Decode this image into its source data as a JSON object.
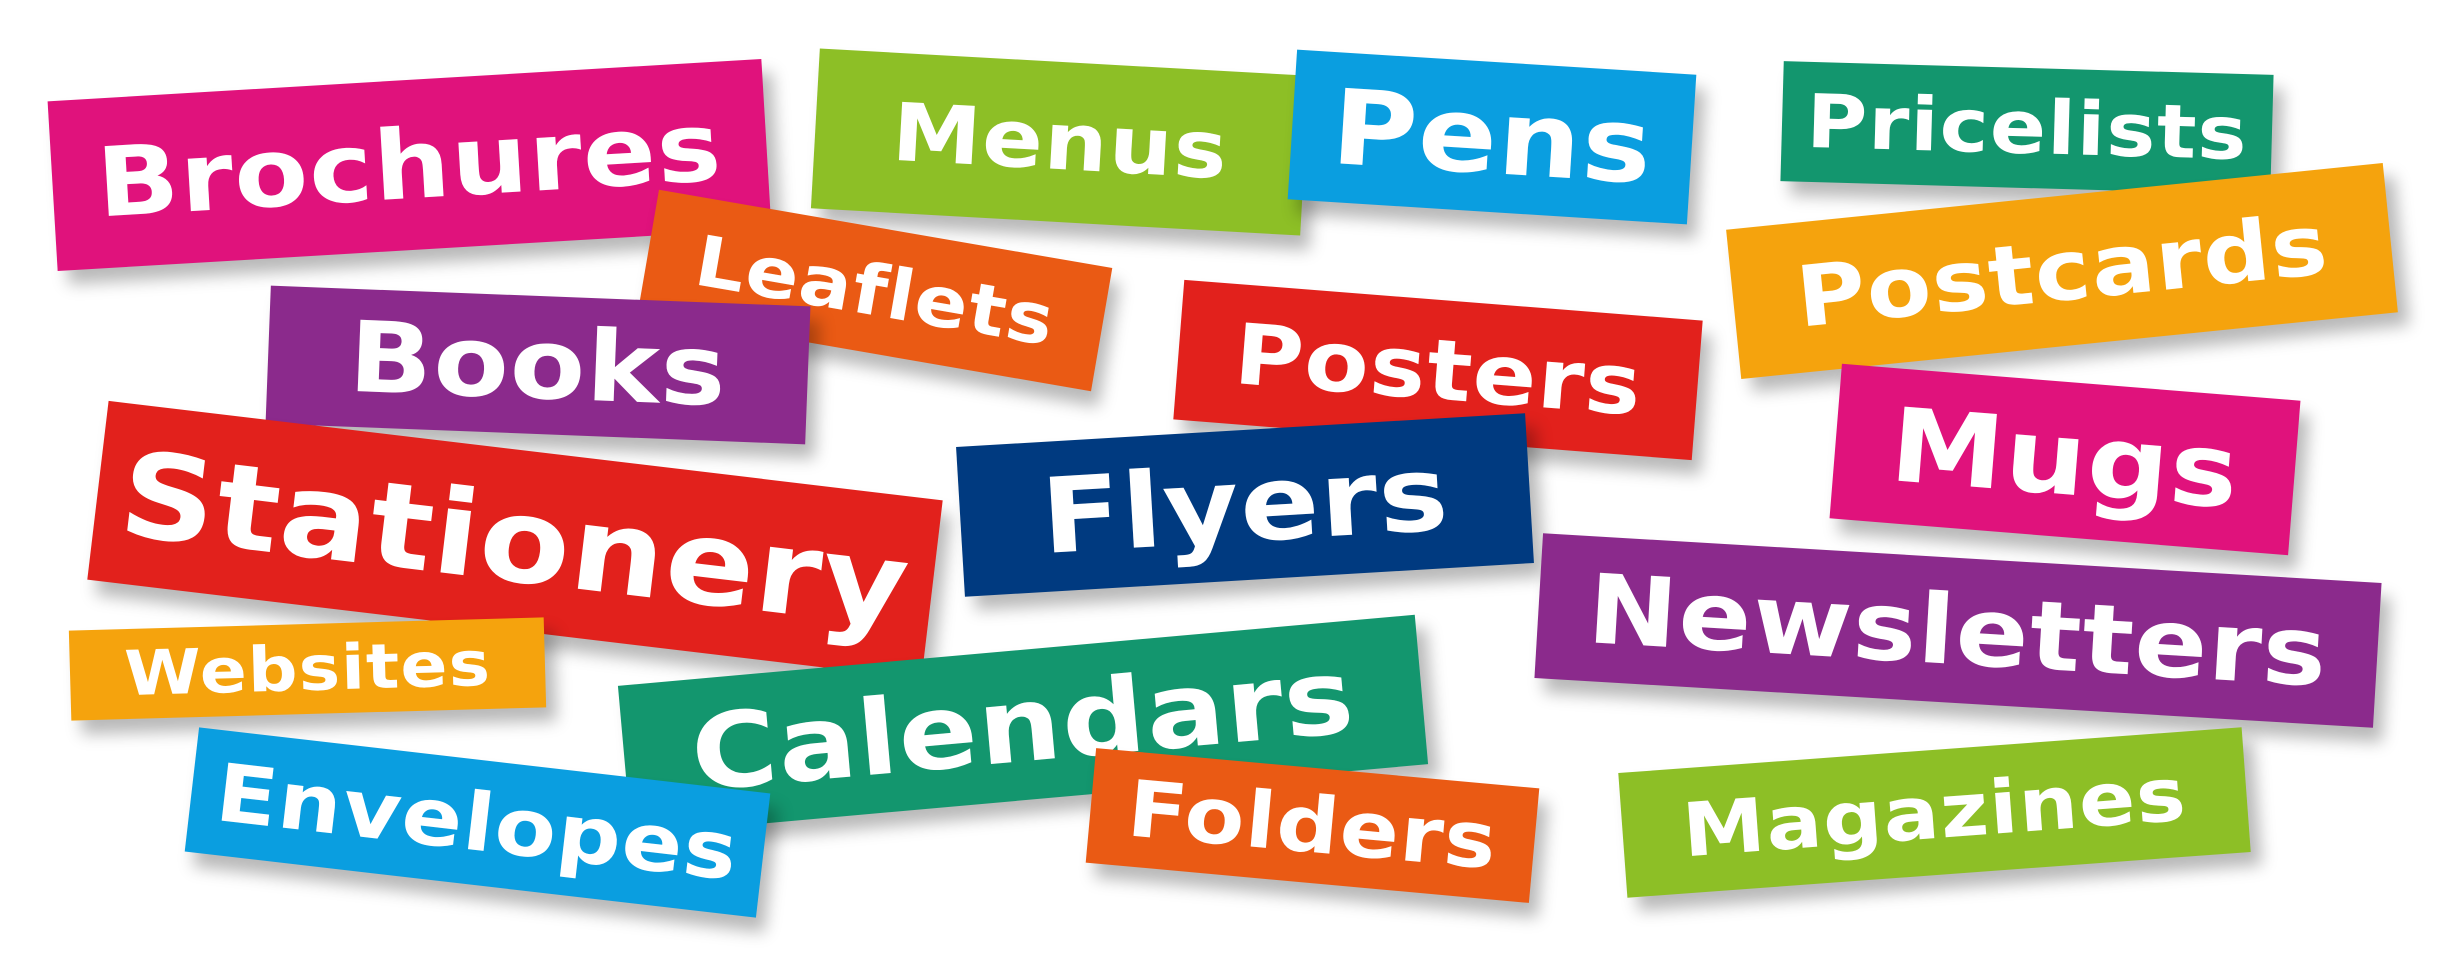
{
  "tags": {
    "brochures": {
      "label": "Brochures",
      "color": "#e0127c"
    },
    "menus": {
      "label": "Menus",
      "color": "#8dbf26"
    },
    "pens": {
      "label": "Pens",
      "color": "#0a9ee0"
    },
    "pricelists": {
      "label": "Pricelists",
      "color": "#13966e"
    },
    "leaflets": {
      "label": "Leaflets",
      "color": "#ea5a14"
    },
    "postcards": {
      "label": "Postcards",
      "color": "#f5a30d"
    },
    "books": {
      "label": "Books",
      "color": "#8b2a8c"
    },
    "posters": {
      "label": "Posters",
      "color": "#e2211c"
    },
    "mugs": {
      "label": "Mugs",
      "color": "#e0127c"
    },
    "stationery": {
      "label": "Stationery",
      "color": "#e2211c"
    },
    "flyers": {
      "label": "Flyers",
      "color": "#003a80"
    },
    "newsletters": {
      "label": "Newsletters",
      "color": "#8b2a8c"
    },
    "websites": {
      "label": "Websites",
      "color": "#f5a30d"
    },
    "calendars": {
      "label": "Calendars",
      "color": "#13966e"
    },
    "envelopes": {
      "label": "Envelopes",
      "color": "#0a9ee0"
    },
    "folders": {
      "label": "Folders",
      "color": "#ea5a14"
    },
    "magazines": {
      "label": "Magazines",
      "color": "#8dbf26"
    }
  }
}
